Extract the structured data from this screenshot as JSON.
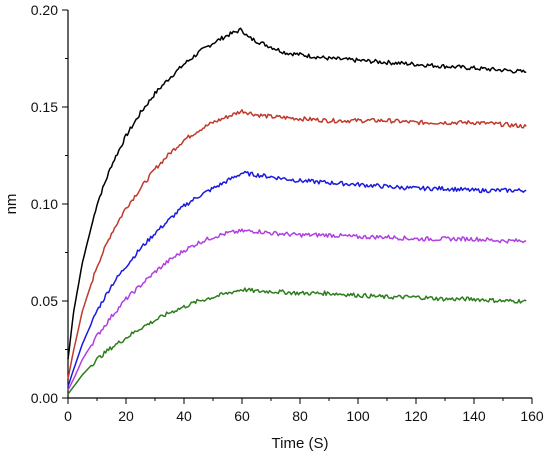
{
  "chart_data": {
    "type": "line",
    "title": "",
    "xlabel": "Time (S)",
    "ylabel": "nm",
    "xlim": [
      0,
      160
    ],
    "ylim": [
      0,
      0.2
    ],
    "x_ticks": [
      0,
      20,
      40,
      60,
      80,
      100,
      120,
      140,
      160
    ],
    "y_ticks": [
      0.0,
      0.05,
      0.1,
      0.15,
      0.2
    ],
    "x_tick_labels": [
      "0",
      "20",
      "40",
      "60",
      "80",
      "100",
      "120",
      "140",
      "160"
    ],
    "y_tick_labels": [
      "0.00",
      "0.05",
      "0.10",
      "0.15",
      "0.20"
    ],
    "grid": false,
    "legend": "none",
    "series": [
      {
        "color": "#000000",
        "x": [
          0,
          2,
          5,
          10,
          15,
          20,
          25,
          30,
          35,
          40,
          45,
          50,
          55,
          60,
          62,
          65,
          70,
          75,
          80,
          90,
          100,
          110,
          120,
          130,
          140,
          150,
          158
        ],
        "y": [
          0.02,
          0.045,
          0.07,
          0.1,
          0.12,
          0.135,
          0.147,
          0.157,
          0.165,
          0.172,
          0.178,
          0.183,
          0.187,
          0.19,
          0.186,
          0.184,
          0.181,
          0.178,
          0.177,
          0.175,
          0.174,
          0.173,
          0.172,
          0.171,
          0.17,
          0.169,
          0.168
        ]
      },
      {
        "color": "#c0392b",
        "x": [
          0,
          2,
          5,
          10,
          15,
          20,
          25,
          30,
          35,
          40,
          45,
          50,
          55,
          60,
          65,
          70,
          80,
          90,
          100,
          110,
          120,
          130,
          140,
          150,
          158
        ],
        "y": [
          0.01,
          0.025,
          0.045,
          0.068,
          0.085,
          0.098,
          0.108,
          0.118,
          0.126,
          0.133,
          0.138,
          0.142,
          0.145,
          0.148,
          0.146,
          0.145,
          0.144,
          0.143,
          0.143,
          0.143,
          0.142,
          0.142,
          0.142,
          0.141,
          0.14
        ]
      },
      {
        "color": "#1a1adf",
        "x": [
          0,
          2,
          5,
          10,
          15,
          20,
          25,
          30,
          35,
          40,
          45,
          50,
          55,
          60,
          65,
          70,
          80,
          90,
          100,
          110,
          120,
          130,
          140,
          150,
          158
        ],
        "y": [
          0.006,
          0.015,
          0.028,
          0.045,
          0.058,
          0.068,
          0.077,
          0.085,
          0.092,
          0.099,
          0.104,
          0.108,
          0.112,
          0.116,
          0.115,
          0.114,
          0.112,
          0.111,
          0.11,
          0.109,
          0.108,
          0.108,
          0.107,
          0.107,
          0.107
        ]
      },
      {
        "color": "#b040e0",
        "x": [
          0,
          2,
          5,
          10,
          15,
          20,
          25,
          30,
          35,
          40,
          45,
          50,
          55,
          60,
          65,
          70,
          80,
          90,
          100,
          110,
          120,
          130,
          140,
          150,
          158
        ],
        "y": [
          0.004,
          0.01,
          0.02,
          0.032,
          0.042,
          0.051,
          0.058,
          0.065,
          0.071,
          0.076,
          0.08,
          0.083,
          0.085,
          0.086,
          0.086,
          0.085,
          0.084,
          0.084,
          0.083,
          0.083,
          0.082,
          0.082,
          0.082,
          0.081,
          0.081
        ]
      },
      {
        "color": "#2e7d1e",
        "x": [
          0,
          2,
          5,
          10,
          15,
          20,
          25,
          30,
          35,
          40,
          45,
          50,
          55,
          60,
          65,
          70,
          80,
          90,
          100,
          110,
          120,
          130,
          140,
          150,
          158
        ],
        "y": [
          0.002,
          0.006,
          0.012,
          0.02,
          0.026,
          0.031,
          0.036,
          0.04,
          0.044,
          0.047,
          0.05,
          0.052,
          0.054,
          0.056,
          0.055,
          0.055,
          0.054,
          0.054,
          0.053,
          0.052,
          0.052,
          0.051,
          0.051,
          0.05,
          0.05
        ]
      }
    ]
  }
}
